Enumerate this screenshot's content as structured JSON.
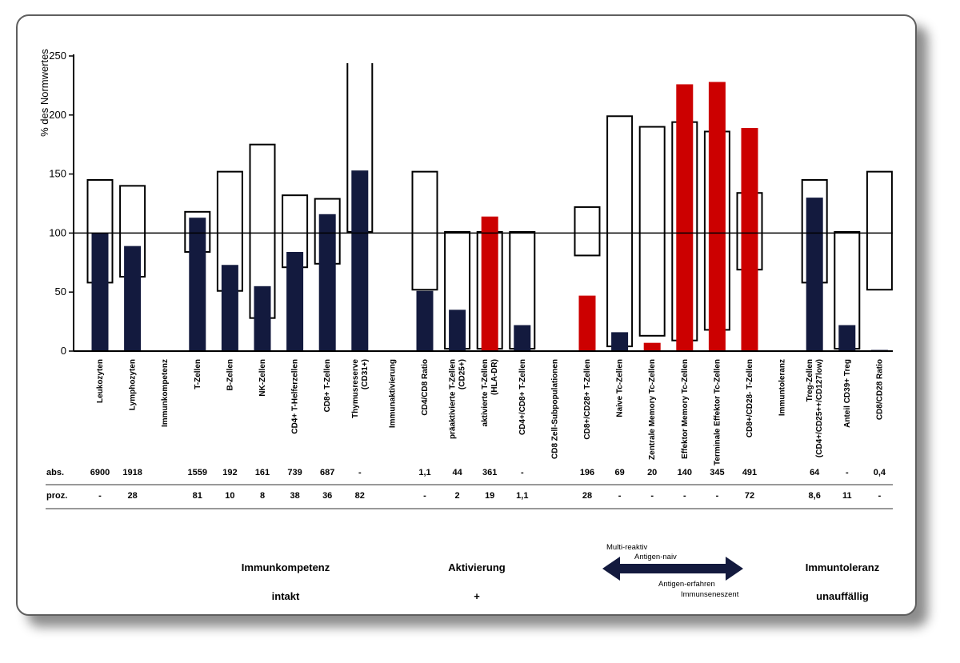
{
  "chart_data": {
    "type": "bar",
    "ylabel": "% des Normwertes",
    "ylim": [
      0,
      250
    ],
    "yticks": [
      "0",
      "50",
      "100",
      "150",
      "200",
      "250"
    ],
    "reference_line": 100,
    "colors": {
      "normal": "#131a3e",
      "abnormal": "#cc0000",
      "range": "#000000"
    },
    "categories": [
      {
        "label": [
          "Leukozyten"
        ],
        "value": 100,
        "status": "normal",
        "range": [
          58,
          145
        ],
        "abs": "6900",
        "proz": "-"
      },
      {
        "label": [
          "Lymphozyten"
        ],
        "value": 89,
        "status": "normal",
        "range": [
          63,
          140
        ],
        "abs": "1918",
        "proz": "28"
      },
      {
        "label": [
          "Immunkompetenz"
        ],
        "value": null,
        "status": null,
        "range": null,
        "abs": "",
        "proz": ""
      },
      {
        "label": [
          "T-Zellen"
        ],
        "value": 113,
        "status": "normal",
        "range": [
          84,
          118
        ],
        "abs": "1559",
        "proz": "81"
      },
      {
        "label": [
          "B-Zellen"
        ],
        "value": 73,
        "status": "normal",
        "range": [
          51,
          152
        ],
        "abs": "192",
        "proz": "10"
      },
      {
        "label": [
          "NK-Zellen"
        ],
        "value": 55,
        "status": "normal",
        "range": [
          28,
          175
        ],
        "abs": "161",
        "proz": "8"
      },
      {
        "label": [
          "CD4+ T-Helferzellen"
        ],
        "value": 84,
        "status": "normal",
        "range": [
          71,
          132
        ],
        "abs": "739",
        "proz": "38"
      },
      {
        "label": [
          "CD8+ T-Zellen"
        ],
        "value": 116,
        "status": "normal",
        "range": [
          74,
          129
        ],
        "abs": "687",
        "proz": "36"
      },
      {
        "label": [
          "Thymusreserve",
          "(CD31+)"
        ],
        "value": 153,
        "status": "normal",
        "range": [
          101,
          250
        ],
        "abs": "-",
        "proz": "82"
      },
      {
        "label": [
          "Immunaktivierung"
        ],
        "value": null,
        "status": null,
        "range": null,
        "abs": "",
        "proz": ""
      },
      {
        "label": [
          "CD4/CD8 Ratio"
        ],
        "value": 51,
        "status": "normal",
        "range": [
          52,
          152
        ],
        "abs": "1,1",
        "proz": "-"
      },
      {
        "label": [
          "präaktivierte T-Zellen",
          "(CD25+)"
        ],
        "value": 35,
        "status": "normal",
        "range": [
          2,
          101
        ],
        "abs": "44",
        "proz": "2"
      },
      {
        "label": [
          "aktivierte T-Zellen",
          "(HLA-DR)"
        ],
        "value": 114,
        "status": "abnormal",
        "range": [
          2,
          101
        ],
        "abs": "361",
        "proz": "19"
      },
      {
        "label": [
          "CD4+/CD8+ T-Zellen"
        ],
        "value": 22,
        "status": "normal",
        "range": [
          2,
          101
        ],
        "abs": "-",
        "proz": "1,1"
      },
      {
        "label": [
          "CD8 Zell-Subpopulationen"
        ],
        "value": null,
        "status": null,
        "range": null,
        "abs": "",
        "proz": ""
      },
      {
        "label": [
          "CD8+/CD28+ T-Zellen"
        ],
        "value": 47,
        "status": "abnormal",
        "range": [
          81,
          122
        ],
        "abs": "196",
        "proz": "28"
      },
      {
        "label": [
          "Naive Tc-Zellen"
        ],
        "value": 16,
        "status": "normal",
        "range": [
          4,
          199
        ],
        "abs": "69",
        "proz": "-"
      },
      {
        "label": [
          "Zentrale Memory Tc-Zellen"
        ],
        "value": 7,
        "status": "abnormal",
        "range": [
          13,
          190
        ],
        "abs": "20",
        "proz": "-"
      },
      {
        "label": [
          "Effektor Memory Tc-Zellen"
        ],
        "value": 226,
        "status": "abnormal",
        "range": [
          9,
          194
        ],
        "abs": "140",
        "proz": "-"
      },
      {
        "label": [
          "Terminale Effektor Tc-Zellen"
        ],
        "value": 228,
        "status": "abnormal",
        "range": [
          18,
          186
        ],
        "abs": "345",
        "proz": "-"
      },
      {
        "label": [
          "CD8+/CD28- T-Zellen"
        ],
        "value": 189,
        "status": "abnormal",
        "range": [
          69,
          134
        ],
        "abs": "491",
        "proz": "72"
      },
      {
        "label": [
          "Immuntoleranz"
        ],
        "value": null,
        "status": null,
        "range": null,
        "abs": "",
        "proz": ""
      },
      {
        "label": [
          "Treg-Zellen",
          "(CD4+/CD25++/CD127low)"
        ],
        "value": 130,
        "status": "normal",
        "range": [
          58,
          145
        ],
        "abs": "64",
        "proz": "8,6"
      },
      {
        "label": [
          "Anteil CD39+ Treg"
        ],
        "value": 22,
        "status": "normal",
        "range": [
          2,
          101
        ],
        "abs": "-",
        "proz": "11"
      },
      {
        "label": [
          "CD8/CD28 Ratio"
        ],
        "value": 1,
        "status": "normal",
        "range": [
          52,
          152
        ],
        "abs": "0,4",
        "proz": "-"
      }
    ],
    "row_labels": {
      "abs": "abs.",
      "proz": "proz."
    }
  },
  "summary": {
    "immunkompetenz": {
      "title": "Immunkompetenz",
      "value": "intakt"
    },
    "aktivierung": {
      "title": "Aktivierung",
      "value": "+"
    },
    "immuntoleranz": {
      "title": "Immuntoleranz",
      "value": "unauffällig"
    },
    "arrow": {
      "left_top": "Multi-reaktiv",
      "left_bottom": "Antigen-naiv",
      "right_top": "Antigen-erfahren",
      "right_bottom": "Immunseneszent"
    }
  }
}
